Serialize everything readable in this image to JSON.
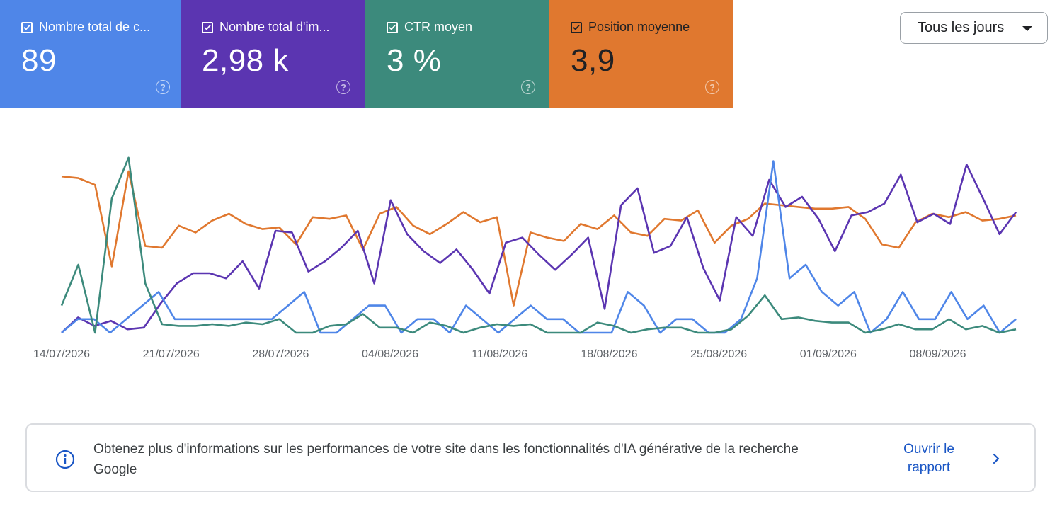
{
  "metrics": [
    {
      "label": "Nombre total de c...",
      "value": "89",
      "color": "#4f86e8",
      "checked": true
    },
    {
      "label": "Nombre total d'im...",
      "value": "2,98 k",
      "color": "#5b35b1",
      "checked": true
    },
    {
      "label": "CTR moyen",
      "value": "3 %",
      "color": "#3c8a7c",
      "checked": true
    },
    {
      "label": "Position moyenne",
      "value": "3,9",
      "color": "#e0782f",
      "checked": true
    }
  ],
  "date_range": {
    "label": "Tous les jours",
    "icon": "caret-down-icon"
  },
  "chart_data": {
    "type": "line",
    "x_tick_labels": [
      "14/07/2026",
      "21/07/2026",
      "28/07/2026",
      "04/08/2026",
      "11/08/2026",
      "18/08/2026",
      "25/08/2026",
      "01/09/2026",
      "08/09/2026"
    ],
    "x_start": "14/07/2026",
    "x_end": "12/09/2026",
    "grid": false,
    "series": [
      {
        "color": "#e0782f",
        "ylim": [
          0,
          100
        ],
        "values": [
          92,
          91,
          87,
          39,
          95,
          51,
          50,
          63,
          59,
          66,
          70,
          64,
          61,
          62,
          52,
          68,
          67,
          69,
          49,
          70,
          74,
          63,
          58,
          64,
          71,
          65,
          68,
          16,
          59,
          56,
          54,
          64,
          61,
          69,
          59,
          57,
          67,
          66,
          72,
          53,
          63,
          67,
          76,
          75,
          74,
          73,
          73,
          74,
          67,
          52,
          50,
          65,
          70,
          68,
          71,
          66,
          67,
          69
        ]
      },
      {
        "color": "#5b35b1",
        "ylim": [
          0,
          100
        ],
        "values": [
          0,
          9,
          4,
          7,
          2,
          3,
          17,
          29,
          35,
          35,
          32,
          42,
          26,
          60,
          59,
          36,
          42,
          50,
          60,
          29,
          78,
          58,
          48,
          41,
          49,
          37,
          23,
          53,
          56,
          46,
          37,
          46,
          56,
          14,
          75,
          85,
          47,
          51,
          68,
          38,
          19,
          68,
          57,
          90,
          74,
          80,
          67,
          48,
          69,
          71,
          76,
          93,
          65,
          70,
          64,
          99,
          79,
          58,
          71
        ]
      },
      {
        "color": "#4f86e8",
        "ylim": [
          0,
          100
        ],
        "values": [
          0,
          8,
          8,
          0,
          8,
          16,
          24,
          8,
          8,
          8,
          8,
          8,
          8,
          8,
          16,
          24,
          0,
          0,
          8,
          16,
          16,
          0,
          8,
          8,
          0,
          16,
          8,
          0,
          8,
          16,
          8,
          8,
          0,
          0,
          0,
          24,
          16,
          0,
          8,
          8,
          0,
          0,
          8,
          32,
          101,
          32,
          40,
          24,
          16,
          24,
          0,
          8,
          24,
          8,
          8,
          24,
          8,
          16,
          0,
          8
        ]
      },
      {
        "color": "#3c8a7c",
        "ylim": [
          0,
          100
        ],
        "values": [
          16,
          40,
          0,
          79,
          103,
          29,
          5,
          4,
          4,
          5,
          4,
          6,
          5,
          8,
          0,
          0,
          4,
          5,
          11,
          3,
          3,
          0,
          6,
          4,
          0,
          3,
          5,
          4,
          5,
          0,
          0,
          0,
          6,
          4,
          0,
          2,
          3,
          3,
          0,
          0,
          2,
          10,
          22,
          8,
          9,
          7,
          6,
          6,
          0,
          2,
          5,
          2,
          2,
          8,
          2,
          4,
          0,
          2
        ]
      }
    ]
  },
  "banner": {
    "icon": "info-icon",
    "text": "Obtenez plus d'informations sur les performances de votre site dans les fonctionnalités d'IA générative de la recherche Google",
    "link_line1": "Ouvrir le",
    "link_line2": "rapport",
    "chevron_icon": "chevron-right-icon"
  }
}
